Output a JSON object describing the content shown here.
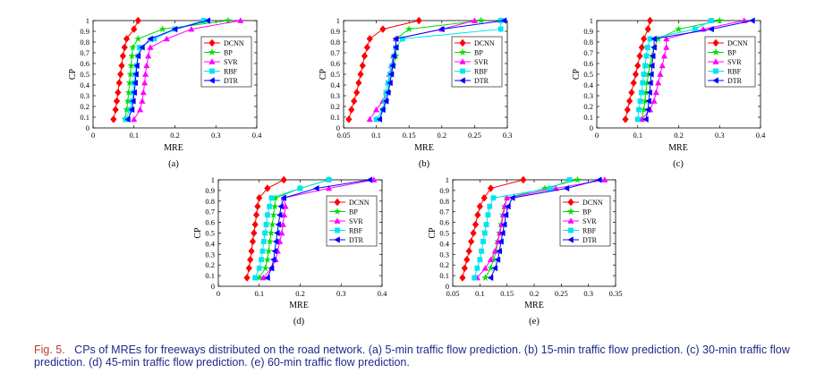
{
  "caption": {
    "label": "Fig. 5.",
    "text": "CPs of MREs for freeways distributed on the road network. (a) 5-min traffic flow prediction. (b) 15-min traffic flow prediction. (c) 30-min traffic flow prediction. (d) 45-min traffic flow prediction. (e) 60-min traffic flow prediction."
  },
  "series_style": [
    {
      "name": "DCNN",
      "color": "#ff0000",
      "marker": "diamond"
    },
    {
      "name": "BP",
      "color": "#00dd00",
      "marker": "star"
    },
    {
      "name": "SVR",
      "color": "#ff00ff",
      "marker": "triangle-up"
    },
    {
      "name": "RBF",
      "color": "#00e5ee",
      "marker": "square"
    },
    {
      "name": "DTR",
      "color": "#0000ff",
      "marker": "triangle-left"
    }
  ],
  "chart_data": [
    {
      "type": "line",
      "panel_label": "(a)",
      "xlabel": "MRE",
      "ylabel": "CP",
      "xlim": [
        0,
        0.4
      ],
      "ylim": [
        0,
        1
      ],
      "xticks": [
        "0",
        "0.1",
        "0.2",
        "0.3",
        "0.4"
      ],
      "yticks": [
        "0",
        "0.1",
        "0.2",
        "0.3",
        "0.4",
        "0.5",
        "0.6",
        "0.7",
        "0.8",
        "0.9",
        "1"
      ],
      "legend": "right",
      "series": [
        {
          "name": "DCNN",
          "x": [
            0.05,
            0.055,
            0.058,
            0.061,
            0.064,
            0.067,
            0.07,
            0.073,
            0.077,
            0.082,
            0.1,
            0.11
          ],
          "y": [
            0.08,
            0.17,
            0.25,
            0.33,
            0.42,
            0.5,
            0.58,
            0.67,
            0.75,
            0.83,
            0.92,
            1
          ]
        },
        {
          "name": "BP",
          "x": [
            0.078,
            0.082,
            0.085,
            0.087,
            0.089,
            0.091,
            0.093,
            0.095,
            0.097,
            0.11,
            0.17,
            0.33
          ],
          "y": [
            0.08,
            0.17,
            0.25,
            0.33,
            0.42,
            0.5,
            0.58,
            0.67,
            0.75,
            0.83,
            0.92,
            1
          ]
        },
        {
          "name": "SVR",
          "x": [
            0.1,
            0.115,
            0.12,
            0.123,
            0.126,
            0.128,
            0.131,
            0.135,
            0.14,
            0.18,
            0.24,
            0.36
          ],
          "y": [
            0.08,
            0.17,
            0.25,
            0.33,
            0.42,
            0.5,
            0.58,
            0.67,
            0.75,
            0.83,
            0.92,
            1
          ]
        },
        {
          "name": "RBF",
          "x": [
            0.08,
            0.09,
            0.095,
            0.098,
            0.1,
            0.103,
            0.106,
            0.11,
            0.113,
            0.15,
            0.2,
            0.27
          ],
          "y": [
            0.08,
            0.17,
            0.25,
            0.33,
            0.42,
            0.5,
            0.58,
            0.67,
            0.75,
            0.83,
            0.92,
            1
          ]
        },
        {
          "name": "DTR",
          "x": [
            0.085,
            0.095,
            0.098,
            0.101,
            0.103,
            0.105,
            0.107,
            0.11,
            0.12,
            0.14,
            0.2,
            0.28
          ],
          "y": [
            0.08,
            0.17,
            0.25,
            0.33,
            0.42,
            0.5,
            0.58,
            0.67,
            0.75,
            0.83,
            0.92,
            1
          ]
        }
      ]
    },
    {
      "type": "line",
      "panel_label": "(b)",
      "xlabel": "MRE",
      "ylabel": "CP",
      "xlim": [
        0.05,
        0.3
      ],
      "ylim": [
        0,
        1
      ],
      "xticks": [
        "0.05",
        "0.1",
        "0.15",
        "0.2",
        "0.25",
        "0.3"
      ],
      "yticks": [
        "0",
        "0.1",
        "0.2",
        "0.3",
        "0.4",
        "0.5",
        "0.6",
        "0.7",
        "0.8",
        "0.9",
        "1"
      ],
      "legend": "right",
      "series": [
        {
          "name": "DCNN",
          "x": [
            0.058,
            0.062,
            0.066,
            0.07,
            0.073,
            0.076,
            0.079,
            0.082,
            0.086,
            0.09,
            0.11,
            0.165
          ],
          "y": [
            0.08,
            0.17,
            0.25,
            0.33,
            0.42,
            0.5,
            0.58,
            0.67,
            0.75,
            0.83,
            0.92,
            1
          ]
        },
        {
          "name": "BP",
          "x": [
            0.1,
            0.11,
            0.115,
            0.118,
            0.12,
            0.123,
            0.126,
            0.13,
            0.13,
            0.13,
            0.15,
            0.26
          ],
          "y": [
            0.08,
            0.17,
            0.25,
            0.33,
            0.42,
            0.5,
            0.58,
            0.67,
            0.75,
            0.83,
            0.92,
            1
          ]
        },
        {
          "name": "SVR",
          "x": [
            0.09,
            0.1,
            0.11,
            0.115,
            0.118,
            0.12,
            0.123,
            0.126,
            0.13,
            0.13,
            0.2,
            0.25
          ],
          "y": [
            0.08,
            0.17,
            0.25,
            0.33,
            0.42,
            0.5,
            0.58,
            0.67,
            0.75,
            0.83,
            0.92,
            1
          ]
        },
        {
          "name": "RBF",
          "x": [
            0.1,
            0.11,
            0.113,
            0.115,
            0.118,
            0.121,
            0.124,
            0.127,
            0.13,
            0.14,
            0.29,
            0.29
          ],
          "y": [
            0.08,
            0.17,
            0.25,
            0.33,
            0.42,
            0.5,
            0.58,
            0.67,
            0.75,
            0.83,
            0.92,
            1
          ]
        },
        {
          "name": "DTR",
          "x": [
            0.105,
            0.11,
            0.115,
            0.118,
            0.121,
            0.123,
            0.125,
            0.127,
            0.13,
            0.13,
            0.2,
            0.295
          ],
          "y": [
            0.08,
            0.17,
            0.25,
            0.33,
            0.42,
            0.5,
            0.58,
            0.67,
            0.75,
            0.83,
            0.92,
            1
          ]
        }
      ]
    },
    {
      "type": "line",
      "panel_label": "(c)",
      "xlabel": "MRE",
      "ylabel": "CP",
      "xlim": [
        0,
        0.4
      ],
      "ylim": [
        0,
        1
      ],
      "xticks": [
        "0",
        "0.1",
        "0.2",
        "0.3",
        "0.4"
      ],
      "yticks": [
        "0",
        "0.1",
        "0.2",
        "0.3",
        "0.4",
        "0.5",
        "0.6",
        "0.7",
        "0.8",
        "0.9",
        "1"
      ],
      "legend": "right",
      "series": [
        {
          "name": "DCNN",
          "x": [
            0.07,
            0.075,
            0.08,
            0.085,
            0.09,
            0.095,
            0.1,
            0.105,
            0.11,
            0.115,
            0.125,
            0.13
          ],
          "y": [
            0.08,
            0.17,
            0.25,
            0.33,
            0.42,
            0.5,
            0.58,
            0.67,
            0.75,
            0.83,
            0.92,
            1
          ]
        },
        {
          "name": "BP",
          "x": [
            0.11,
            0.115,
            0.118,
            0.12,
            0.123,
            0.126,
            0.13,
            0.135,
            0.14,
            0.15,
            0.2,
            0.3
          ],
          "y": [
            0.08,
            0.17,
            0.25,
            0.33,
            0.42,
            0.5,
            0.58,
            0.67,
            0.75,
            0.83,
            0.92,
            1
          ]
        },
        {
          "name": "SVR",
          "x": [
            0.11,
            0.13,
            0.14,
            0.145,
            0.15,
            0.155,
            0.16,
            0.165,
            0.17,
            0.17,
            0.26,
            0.36
          ],
          "y": [
            0.08,
            0.17,
            0.25,
            0.33,
            0.42,
            0.5,
            0.58,
            0.67,
            0.75,
            0.83,
            0.92,
            1
          ]
        },
        {
          "name": "RBF",
          "x": [
            0.1,
            0.103,
            0.106,
            0.109,
            0.112,
            0.115,
            0.118,
            0.121,
            0.124,
            0.13,
            0.24,
            0.28
          ],
          "y": [
            0.08,
            0.17,
            0.25,
            0.33,
            0.42,
            0.5,
            0.58,
            0.67,
            0.75,
            0.83,
            0.92,
            1
          ]
        },
        {
          "name": "DTR",
          "x": [
            0.12,
            0.125,
            0.127,
            0.129,
            0.131,
            0.133,
            0.135,
            0.137,
            0.14,
            0.14,
            0.28,
            0.38
          ],
          "y": [
            0.08,
            0.17,
            0.25,
            0.33,
            0.42,
            0.5,
            0.58,
            0.67,
            0.75,
            0.83,
            0.92,
            1
          ]
        }
      ]
    },
    {
      "type": "line",
      "panel_label": "(d)",
      "xlabel": "MRE",
      "ylabel": "CP",
      "xlim": [
        0,
        0.4
      ],
      "ylim": [
        0,
        1
      ],
      "xticks": [
        "0",
        "0.1",
        "0.2",
        "0.3",
        "0.4"
      ],
      "yticks": [
        "0",
        "0.1",
        "0.2",
        "0.3",
        "0.4",
        "0.5",
        "0.6",
        "0.7",
        "0.8",
        "0.9",
        "1"
      ],
      "legend": "right",
      "series": [
        {
          "name": "DCNN",
          "x": [
            0.07,
            0.075,
            0.078,
            0.081,
            0.084,
            0.087,
            0.09,
            0.093,
            0.096,
            0.1,
            0.12,
            0.16
          ],
          "y": [
            0.08,
            0.17,
            0.25,
            0.33,
            0.42,
            0.5,
            0.58,
            0.67,
            0.75,
            0.83,
            0.92,
            1
          ]
        },
        {
          "name": "BP",
          "x": [
            0.1,
            0.115,
            0.12,
            0.123,
            0.126,
            0.129,
            0.132,
            0.135,
            0.138,
            0.14,
            0.2,
            0.27
          ],
          "y": [
            0.08,
            0.17,
            0.25,
            0.33,
            0.42,
            0.5,
            0.58,
            0.67,
            0.75,
            0.83,
            0.92,
            1
          ]
        },
        {
          "name": "SVR",
          "x": [
            0.11,
            0.13,
            0.14,
            0.145,
            0.15,
            0.155,
            0.158,
            0.161,
            0.164,
            0.16,
            0.27,
            0.38
          ],
          "y": [
            0.08,
            0.17,
            0.25,
            0.33,
            0.42,
            0.5,
            0.58,
            0.67,
            0.75,
            0.83,
            0.92,
            1
          ]
        },
        {
          "name": "RBF",
          "x": [
            0.09,
            0.1,
            0.105,
            0.108,
            0.111,
            0.114,
            0.117,
            0.12,
            0.125,
            0.13,
            0.2,
            0.27
          ],
          "y": [
            0.08,
            0.17,
            0.25,
            0.33,
            0.42,
            0.5,
            0.58,
            0.67,
            0.75,
            0.83,
            0.92,
            1
          ]
        },
        {
          "name": "DTR",
          "x": [
            0.12,
            0.13,
            0.135,
            0.138,
            0.141,
            0.144,
            0.147,
            0.15,
            0.153,
            0.16,
            0.24,
            0.37
          ],
          "y": [
            0.08,
            0.17,
            0.25,
            0.33,
            0.42,
            0.5,
            0.58,
            0.67,
            0.75,
            0.83,
            0.92,
            1
          ]
        }
      ]
    },
    {
      "type": "line",
      "panel_label": "(e)",
      "xlabel": "MRE",
      "ylabel": "CP",
      "xlim": [
        0.05,
        0.35
      ],
      "ylim": [
        0,
        1
      ],
      "xticks": [
        "0.05",
        "0.1",
        "0.15",
        "0.2",
        "0.25",
        "0.3",
        "0.35"
      ],
      "yticks": [
        "0",
        "0.1",
        "0.2",
        "0.3",
        "0.4",
        "0.5",
        "0.6",
        "0.7",
        "0.8",
        "0.9",
        "1"
      ],
      "legend": "right",
      "series": [
        {
          "name": "DCNN",
          "x": [
            0.068,
            0.072,
            0.076,
            0.08,
            0.084,
            0.088,
            0.092,
            0.096,
            0.1,
            0.108,
            0.12,
            0.18
          ],
          "y": [
            0.08,
            0.17,
            0.25,
            0.33,
            0.42,
            0.5,
            0.58,
            0.67,
            0.75,
            0.83,
            0.92,
            1
          ]
        },
        {
          "name": "BP",
          "x": [
            0.11,
            0.12,
            0.125,
            0.13,
            0.133,
            0.136,
            0.139,
            0.142,
            0.145,
            0.15,
            0.22,
            0.28
          ],
          "y": [
            0.08,
            0.17,
            0.25,
            0.33,
            0.42,
            0.5,
            0.58,
            0.67,
            0.75,
            0.83,
            0.92,
            1
          ]
        },
        {
          "name": "SVR",
          "x": [
            0.095,
            0.11,
            0.12,
            0.128,
            0.133,
            0.137,
            0.14,
            0.143,
            0.146,
            0.15,
            0.24,
            0.33
          ],
          "y": [
            0.08,
            0.17,
            0.25,
            0.33,
            0.42,
            0.5,
            0.58,
            0.67,
            0.75,
            0.83,
            0.92,
            1
          ]
        },
        {
          "name": "RBF",
          "x": [
            0.09,
            0.095,
            0.1,
            0.103,
            0.106,
            0.109,
            0.112,
            0.115,
            0.118,
            0.125,
            0.23,
            0.265
          ],
          "y": [
            0.08,
            0.17,
            0.25,
            0.33,
            0.42,
            0.5,
            0.58,
            0.67,
            0.75,
            0.83,
            0.92,
            1
          ]
        },
        {
          "name": "DTR",
          "x": [
            0.12,
            0.128,
            0.133,
            0.136,
            0.139,
            0.142,
            0.145,
            0.148,
            0.152,
            0.16,
            0.26,
            0.32
          ],
          "y": [
            0.08,
            0.17,
            0.25,
            0.33,
            0.42,
            0.5,
            0.58,
            0.67,
            0.75,
            0.83,
            0.92,
            1
          ]
        }
      ]
    }
  ]
}
